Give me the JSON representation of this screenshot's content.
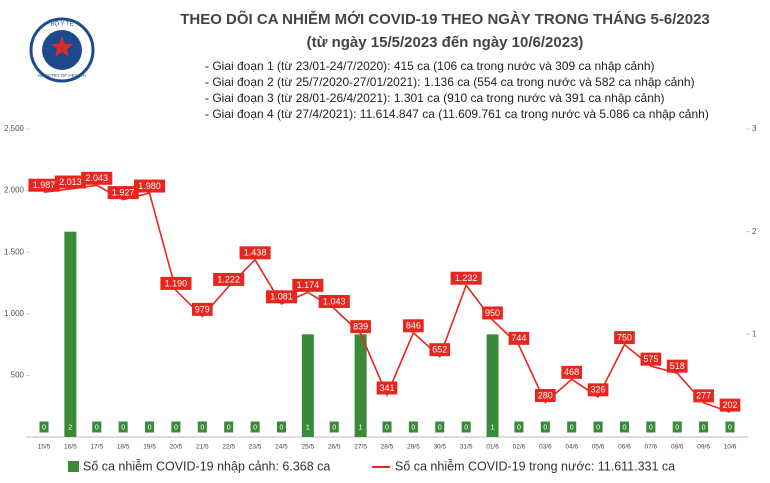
{
  "logo": {
    "top": "BỘ Y TẾ",
    "bottom": "MINISTRY OF HEALTH"
  },
  "chart_data": {
    "type": "bar_line",
    "title": "THEO DÕI CA NHIỄM MỚI COVID-19 THEO NGÀY TRONG THÁNG 5-6/2023",
    "subtitle": "(từ ngày 15/5/2023 đến ngày 10/6/2023)",
    "notes": [
      "- Giai đoạn 1 (từ 23/01-24/7/2020): 415 ca (106 ca trong nước và 309 ca nhập cảnh)",
      "- Giai đoạn 2 (từ 25/7/2020-27/01/2021): 1.136 ca (554 ca trong nước và 582 ca nhập cảnh)",
      "- Giai đoạn 3 (từ 28/01-26/4/2021): 1.301 ca (910 ca trong nước và 391 ca nhập cảnh)",
      "- Giai đoạn 4 (từ 27/4/2021): 11.614.847 ca (11.609.761 ca trong nước và 5.086 ca nhập cảnh)"
    ],
    "categories": [
      "15/5",
      "16/5",
      "17/5",
      "18/5",
      "19/5",
      "20/5",
      "21/5",
      "22/5",
      "23/5",
      "24/5",
      "25/5",
      "26/5",
      "27/5",
      "28/5",
      "29/5",
      "30/5",
      "31/5",
      "01/6",
      "02/6",
      "03/6",
      "04/6",
      "05/6",
      "06/6",
      "07/6",
      "08/6",
      "09/6",
      "10/6"
    ],
    "series": [
      {
        "name": "Số ca nhiễm COVID-19 nhập cảnh: 6.368 ca",
        "type": "bar",
        "axis": "y2",
        "color": "#3b8a3a",
        "values": [
          0,
          2,
          0,
          0,
          0,
          0,
          0,
          0,
          0,
          0,
          1,
          0,
          1,
          0,
          0,
          0,
          0,
          1,
          0,
          0,
          0,
          0,
          0,
          0,
          0,
          0,
          0
        ]
      },
      {
        "name": "Số ca nhiễm COVID-19 trong nước: 11.611.331 ca",
        "type": "line",
        "color": "#e8251f",
        "values": [
          1987,
          2013,
          2043,
          1927,
          1980,
          1190,
          979,
          1222,
          1438,
          1081,
          1174,
          1043,
          839,
          341,
          846,
          652,
          1232,
          950,
          744,
          280,
          468,
          326,
          750,
          575,
          518,
          277,
          202
        ],
        "value_labels": [
          "1.987",
          "2.013",
          "2.043",
          "1.927",
          "1.980",
          "1.190",
          "979",
          "1.222",
          "1.438",
          "1.081",
          "1.174",
          "1.043",
          "839",
          "341",
          "846",
          "652",
          "1.232",
          "950",
          "744",
          "280",
          "468",
          "326",
          "750",
          "575",
          "518",
          "277",
          "202"
        ]
      }
    ],
    "ylim": [
      0,
      2500
    ],
    "yticks": [
      500,
      {
        "value": 1000,
        "label": "1.000"
      },
      {
        "value": 1500,
        "label": "1.500"
      },
      {
        "value": 2000,
        "label": "2.000"
      },
      {
        "value": 2500,
        "label": "2.500"
      }
    ],
    "y2lim": [
      0,
      3
    ],
    "y2ticks": [
      1,
      2,
      3
    ]
  }
}
